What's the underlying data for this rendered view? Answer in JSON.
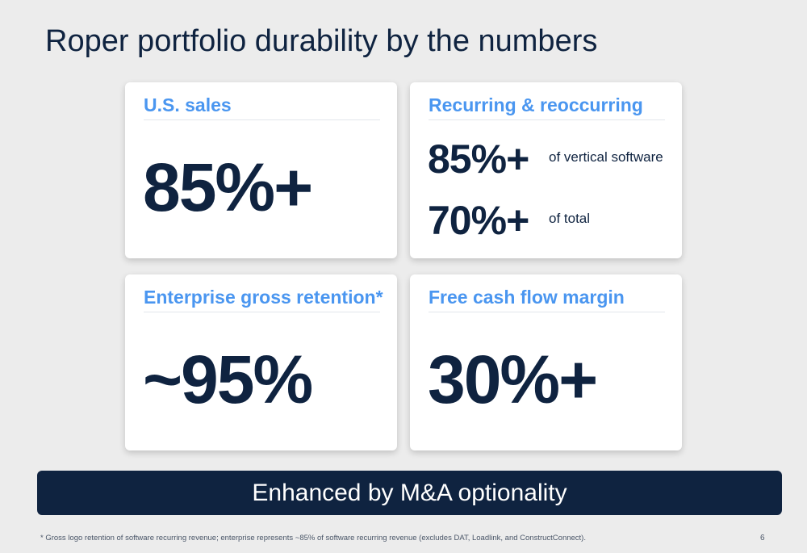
{
  "slide": {
    "title": "Roper portfolio durability by the numbers",
    "cards": {
      "us_sales": {
        "title": "U.S. sales",
        "value": "85%+"
      },
      "recurring": {
        "title": "Recurring & reoccurring",
        "rows": [
          {
            "value": "85%+",
            "note": "of vertical software"
          },
          {
            "value": "70%+",
            "note": "of total"
          }
        ]
      },
      "retention": {
        "title": "Enterprise gross retention*",
        "value": "~95%"
      },
      "fcf": {
        "title": "Free cash flow margin",
        "value": "30%+"
      }
    },
    "banner": "Enhanced by M&A optionality",
    "footnote": "* Gross logo retention of software recurring revenue; enterprise represents ~85% of software recurring revenue (excludes DAT, Loadlink, and ConstructConnect).",
    "page_number": "6"
  },
  "colors": {
    "background": "#ececec",
    "navy": "#0f2340",
    "accent_blue": "#4a96f0",
    "card": "#ffffff"
  }
}
